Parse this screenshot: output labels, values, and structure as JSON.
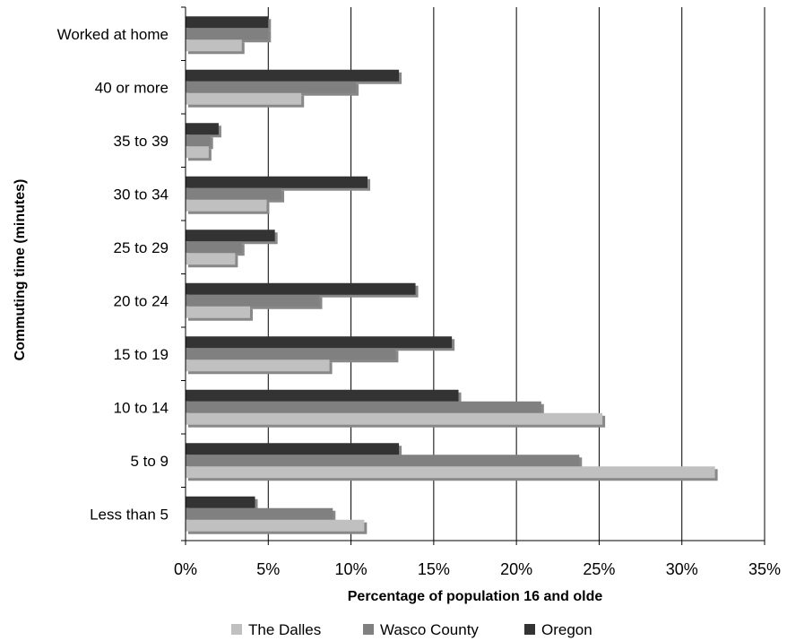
{
  "chart_data": {
    "type": "bar",
    "orientation": "horizontal",
    "categories": [
      "Less than 5",
      "5 to 9",
      "10 to 14",
      "15 to 19",
      "20 to 24",
      "25 to 29",
      "30 to 34",
      "35 to 39",
      "40 or more",
      "Worked at home"
    ],
    "series": [
      {
        "name": "The Dalles",
        "color": "#c0c0c0",
        "values": [
          10.8,
          32.0,
          25.2,
          8.7,
          3.9,
          3.0,
          4.9,
          1.4,
          7.0,
          3.4
        ]
      },
      {
        "name": "Wasco County",
        "color": "#808080",
        "values": [
          8.9,
          23.8,
          21.5,
          12.7,
          8.1,
          3.4,
          5.8,
          1.5,
          10.3,
          5.0
        ]
      },
      {
        "name": "Oregon",
        "color": "#333333",
        "values": [
          4.2,
          12.9,
          16.5,
          16.1,
          13.9,
          5.4,
          11.0,
          2.0,
          12.9,
          5.0
        ]
      }
    ],
    "xlabel": "Percentage of population 16 and olde",
    "ylabel": "Commuting time (minutes)",
    "xlim": [
      0,
      35
    ],
    "xticks": [
      "0%",
      "5%",
      "10%",
      "15%",
      "20%",
      "25%",
      "30%",
      "35%"
    ],
    "grid": "vertical",
    "legend_position": "bottom",
    "bar_style": "3d-shadow"
  }
}
